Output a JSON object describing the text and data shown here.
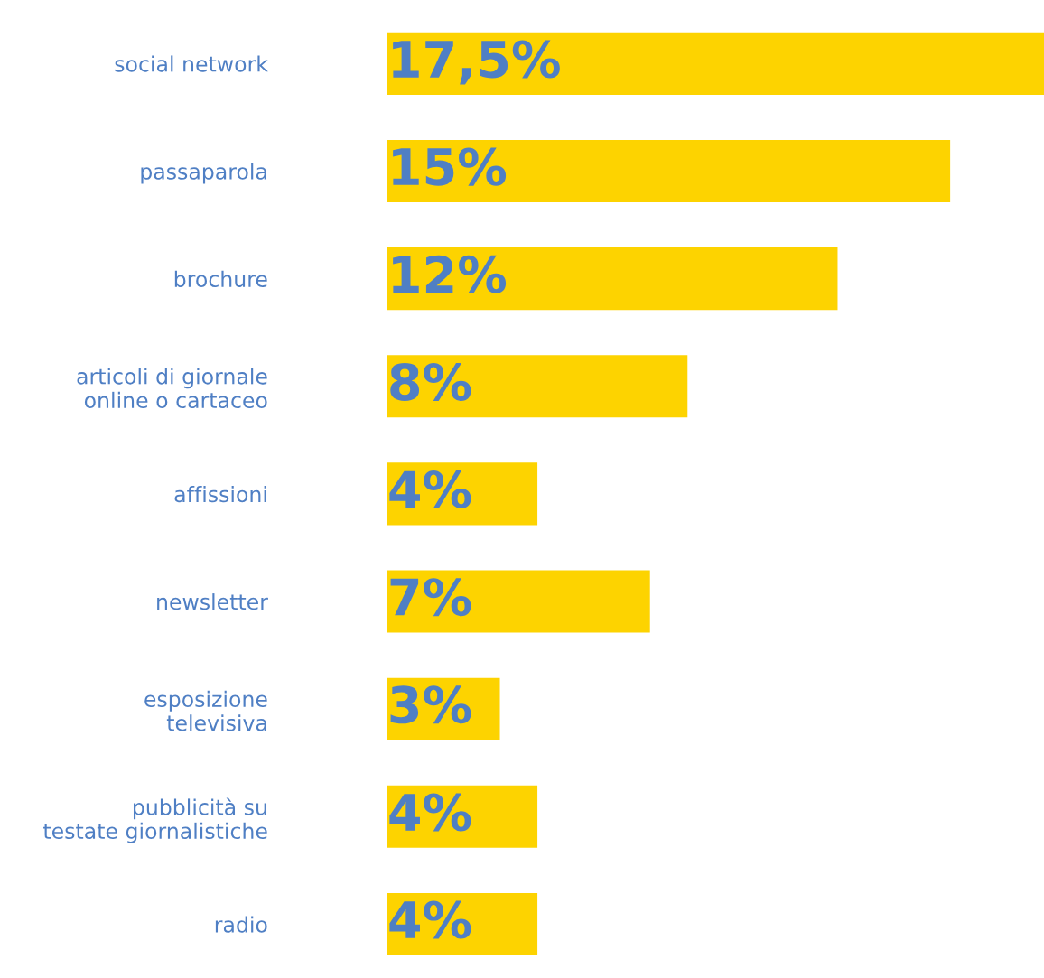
{
  "chart_data": {
    "type": "bar",
    "orientation": "horizontal",
    "categories": [
      "social network",
      "passaparola",
      "brochure",
      "articoli di giornale\nonline o cartaceo",
      "affissioni",
      "newsletter",
      "esposizione\ntelevisiva",
      "pubblicità su\ntestate giornalistiche",
      "radio"
    ],
    "values": [
      17.5,
      15,
      12,
      8,
      4,
      7,
      3,
      4,
      4
    ],
    "value_labels": [
      "17,5%",
      "15%",
      "12%",
      "8%",
      "4%",
      "7%",
      "3%",
      "4%",
      "4%"
    ],
    "color": "#fdd300",
    "grid": false,
    "legend": false
  }
}
